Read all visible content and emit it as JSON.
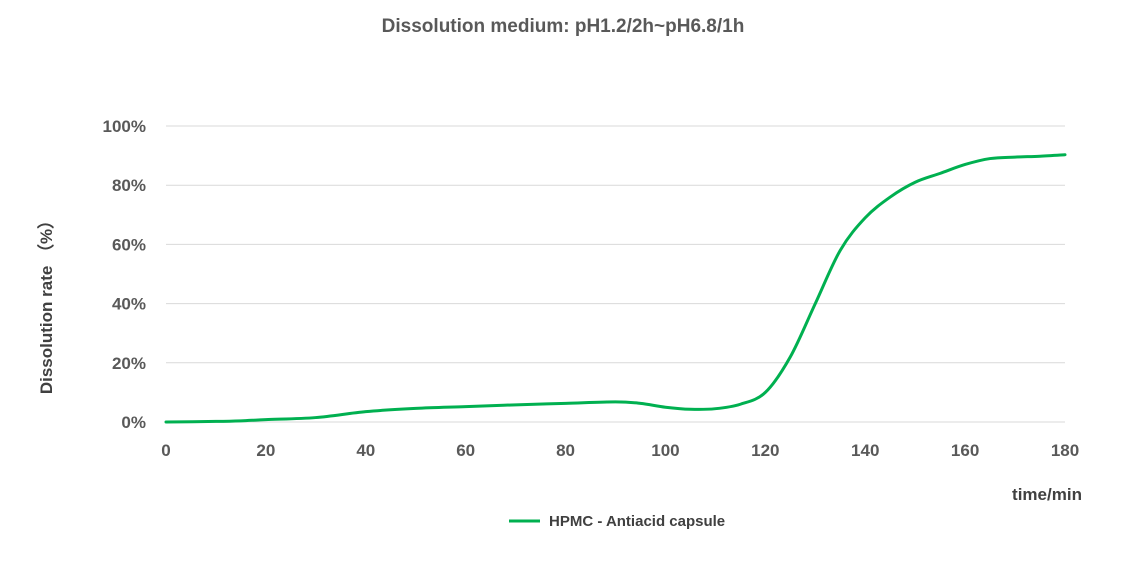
{
  "chart_data": {
    "type": "line",
    "title": "Dissolution medium: pH1.2/2h~pH6.8/1h",
    "xlabel": "time/min",
    "ylabel": "Dissolution  rate （%）",
    "xlim": [
      0,
      180
    ],
    "ylim": [
      0,
      100
    ],
    "x_ticks": [
      "0",
      "20",
      "40",
      "60",
      "80",
      "100",
      "120",
      "140",
      "160",
      "180"
    ],
    "y_ticks": [
      "0%",
      "20%",
      "40%",
      "60%",
      "80%",
      "100%"
    ],
    "grid": true,
    "legend_position": "bottom",
    "series": [
      {
        "name": "HPMC - Antiacid capsule",
        "color": "#00b050",
        "x": [
          0,
          10,
          15,
          20,
          30,
          40,
          50,
          60,
          70,
          80,
          90,
          95,
          100,
          105,
          110,
          115,
          120,
          125,
          130,
          135,
          140,
          145,
          150,
          155,
          160,
          165,
          170,
          175,
          180
        ],
        "y": [
          0,
          0.2,
          0.4,
          0.8,
          1.5,
          3.5,
          4.6,
          5.2,
          5.8,
          6.3,
          6.8,
          6.3,
          5.0,
          4.3,
          4.5,
          6.0,
          10.0,
          22.0,
          40.0,
          58.0,
          69.0,
          76.0,
          81.0,
          84.0,
          87.0,
          89.0,
          89.5,
          89.8,
          90.3
        ]
      }
    ]
  }
}
